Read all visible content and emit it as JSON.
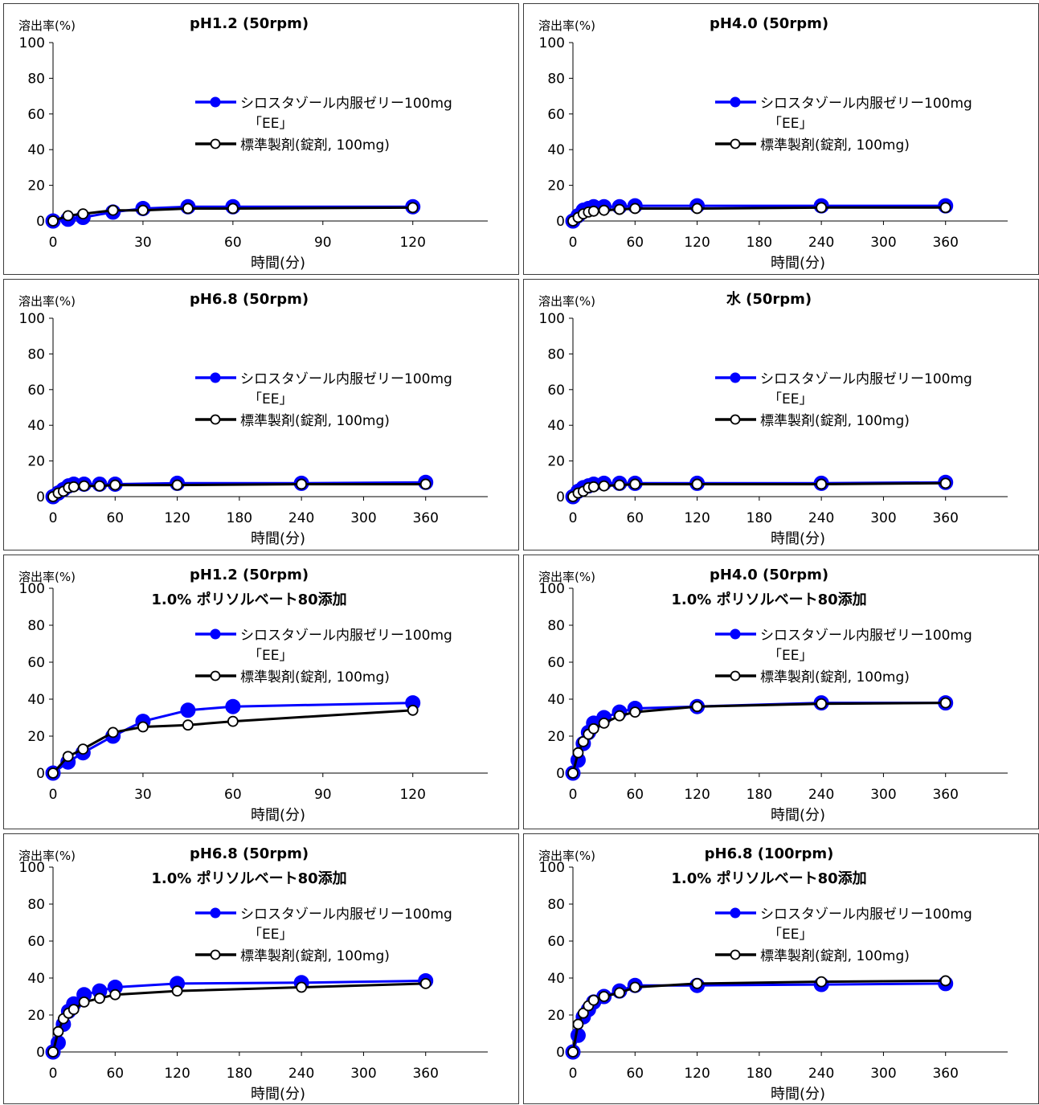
{
  "page": {
    "columns": 2,
    "rows": 4
  },
  "legend_labels": {
    "test": "シロスタゾール内服ゼリー100mg",
    "test_suffix": "「EE」",
    "reference": "標準製剤(錠剤, 100mg)"
  },
  "colors": {
    "test": "#0000ff",
    "reference": "#000000",
    "axis": "#000000"
  },
  "chart_data": [
    {
      "type": "line",
      "title": "pH1.2 (50rpm)",
      "subtitle": "",
      "ylabel": "溶出率(%)",
      "xlabel": "時間(分)",
      "xlim": [
        0,
        145
      ],
      "ylim": [
        0,
        100
      ],
      "xticks": [
        0,
        30,
        60,
        90,
        120
      ],
      "yticks": [
        0,
        20,
        40,
        60,
        80,
        100
      ],
      "legend": "upper-right",
      "series": [
        {
          "name": "シロスタゾール内服ゼリー100mg「EE」",
          "color": "#0000ff",
          "marker": "filled",
          "x": [
            0,
            5,
            10,
            20,
            30,
            45,
            60,
            120
          ],
          "y": [
            0,
            1,
            2,
            5,
            7,
            8,
            8,
            8
          ]
        },
        {
          "name": "標準製剤(錠剤, 100mg)",
          "color": "#000000",
          "marker": "open",
          "x": [
            0,
            5,
            10,
            20,
            30,
            45,
            60,
            120
          ],
          "y": [
            0,
            3,
            4,
            6,
            6,
            7,
            7,
            7.5
          ]
        }
      ]
    },
    {
      "type": "line",
      "title": "pH4.0 (50rpm)",
      "subtitle": "",
      "ylabel": "溶出率(%)",
      "xlabel": "時間(分)",
      "xlim": [
        0,
        420
      ],
      "ylim": [
        0,
        100
      ],
      "xticks": [
        0,
        60,
        120,
        180,
        240,
        300,
        360
      ],
      "yticks": [
        0,
        20,
        40,
        60,
        80,
        100
      ],
      "legend": "upper-right",
      "series": [
        {
          "name": "シロスタゾール内服ゼリー100mg「EE」",
          "color": "#0000ff",
          "marker": "filled",
          "x": [
            0,
            5,
            10,
            15,
            20,
            30,
            45,
            60,
            120,
            240,
            360
          ],
          "y": [
            0,
            3,
            6,
            7,
            8,
            8,
            8,
            8.5,
            8.5,
            8.5,
            8.5
          ]
        },
        {
          "name": "標準製剤(錠剤, 100mg)",
          "color": "#000000",
          "marker": "open",
          "x": [
            0,
            5,
            10,
            15,
            20,
            30,
            45,
            60,
            120,
            240,
            360
          ],
          "y": [
            0,
            2,
            4,
            5,
            5.5,
            6,
            6.5,
            7,
            7,
            7.5,
            7.5
          ]
        }
      ]
    },
    {
      "type": "line",
      "title": "pH6.8 (50rpm)",
      "subtitle": "",
      "ylabel": "溶出率(%)",
      "xlabel": "時間(分)",
      "xlim": [
        0,
        420
      ],
      "ylim": [
        0,
        100
      ],
      "xticks": [
        0,
        60,
        120,
        180,
        240,
        300,
        360
      ],
      "yticks": [
        0,
        20,
        40,
        60,
        80,
        100
      ],
      "legend": "upper-right",
      "series": [
        {
          "name": "シロスタゾール内服ゼリー100mg「EE」",
          "color": "#0000ff",
          "marker": "filled",
          "x": [
            0,
            5,
            10,
            15,
            20,
            30,
            45,
            60,
            120,
            240,
            360
          ],
          "y": [
            0,
            2,
            4,
            6,
            7,
            7,
            7,
            7,
            7.5,
            7.5,
            8
          ]
        },
        {
          "name": "標準製剤(錠剤, 100mg)",
          "color": "#000000",
          "marker": "open",
          "x": [
            0,
            5,
            10,
            15,
            20,
            30,
            45,
            60,
            120,
            240,
            360
          ],
          "y": [
            0,
            2,
            3,
            5,
            5.5,
            6,
            6,
            6.5,
            6.5,
            7,
            7
          ]
        }
      ]
    },
    {
      "type": "line",
      "title": "水 (50rpm)",
      "subtitle": "",
      "ylabel": "溶出率(%)",
      "xlabel": "時間(分)",
      "xlim": [
        0,
        420
      ],
      "ylim": [
        0,
        100
      ],
      "xticks": [
        0,
        60,
        120,
        180,
        240,
        300,
        360
      ],
      "yticks": [
        0,
        20,
        40,
        60,
        80,
        100
      ],
      "legend": "upper-right",
      "series": [
        {
          "name": "シロスタゾール内服ゼリー100mg「EE」",
          "color": "#0000ff",
          "marker": "filled",
          "x": [
            0,
            5,
            10,
            15,
            20,
            30,
            45,
            60,
            120,
            240,
            360
          ],
          "y": [
            0,
            3,
            5,
            6,
            7,
            7.5,
            7.5,
            7.5,
            7.5,
            7.5,
            8
          ]
        },
        {
          "name": "標準製剤(錠剤, 100mg)",
          "color": "#000000",
          "marker": "open",
          "x": [
            0,
            5,
            10,
            15,
            20,
            30,
            45,
            60,
            120,
            240,
            360
          ],
          "y": [
            0,
            2,
            3,
            5,
            5.5,
            6,
            6.5,
            7,
            7,
            7,
            7.5
          ]
        }
      ]
    },
    {
      "type": "line",
      "title": "pH1.2 (50rpm)",
      "subtitle": "1.0% ポリソルベート80添加",
      "ylabel": "溶出率(%)",
      "xlabel": "時間(分)",
      "xlim": [
        0,
        145
      ],
      "ylim": [
        0,
        100
      ],
      "xticks": [
        0,
        30,
        60,
        90,
        120
      ],
      "yticks": [
        0,
        20,
        40,
        60,
        80,
        100
      ],
      "legend": "upper-right",
      "series": [
        {
          "name": "シロスタゾール内服ゼリー100mg「EE」",
          "color": "#0000ff",
          "marker": "filled",
          "x": [
            0,
            5,
            10,
            20,
            30,
            45,
            60,
            120
          ],
          "y": [
            0,
            6,
            11,
            20,
            28,
            34,
            36,
            38
          ]
        },
        {
          "name": "標準製剤(錠剤, 100mg)",
          "color": "#000000",
          "marker": "open",
          "x": [
            0,
            5,
            10,
            20,
            30,
            45,
            60,
            120
          ],
          "y": [
            0,
            9,
            13,
            22,
            25,
            26,
            28,
            34
          ]
        }
      ]
    },
    {
      "type": "line",
      "title": "pH4.0 (50rpm)",
      "subtitle": "1.0% ポリソルベート80添加",
      "ylabel": "溶出率(%)",
      "xlabel": "時間(分)",
      "xlim": [
        0,
        420
      ],
      "ylim": [
        0,
        100
      ],
      "xticks": [
        0,
        60,
        120,
        180,
        240,
        300,
        360
      ],
      "yticks": [
        0,
        20,
        40,
        60,
        80,
        100
      ],
      "legend": "upper-right",
      "series": [
        {
          "name": "シロスタゾール内服ゼリー100mg「EE」",
          "color": "#0000ff",
          "marker": "filled",
          "x": [
            0,
            5,
            10,
            15,
            20,
            30,
            45,
            60,
            120,
            240,
            360
          ],
          "y": [
            0,
            7,
            16,
            22,
            27,
            30,
            33,
            35,
            36,
            38,
            38
          ]
        },
        {
          "name": "標準製剤(錠剤, 100mg)",
          "color": "#000000",
          "marker": "open",
          "x": [
            0,
            5,
            10,
            15,
            20,
            30,
            45,
            60,
            120,
            240,
            360
          ],
          "y": [
            0,
            11,
            17,
            21,
            24,
            27,
            31,
            33,
            36,
            37.5,
            38
          ]
        }
      ]
    },
    {
      "type": "line",
      "title": "pH6.8 (50rpm)",
      "subtitle": "1.0% ポリソルベート80添加",
      "ylabel": "溶出率(%)",
      "xlabel": "時間(分)",
      "xlim": [
        0,
        420
      ],
      "ylim": [
        0,
        100
      ],
      "xticks": [
        0,
        60,
        120,
        180,
        240,
        300,
        360
      ],
      "yticks": [
        0,
        20,
        40,
        60,
        80,
        100
      ],
      "legend": "upper-right",
      "series": [
        {
          "name": "シロスタゾール内服ゼリー100mg「EE」",
          "color": "#0000ff",
          "marker": "filled",
          "x": [
            0,
            5,
            10,
            15,
            20,
            30,
            45,
            60,
            120,
            240,
            360
          ],
          "y": [
            0,
            5,
            15,
            22,
            26,
            31,
            33,
            35,
            37,
            37.5,
            38.5
          ]
        },
        {
          "name": "標準製剤(錠剤, 100mg)",
          "color": "#000000",
          "marker": "open",
          "x": [
            0,
            5,
            10,
            15,
            20,
            30,
            45,
            60,
            120,
            240,
            360
          ],
          "y": [
            0,
            11,
            18,
            21,
            23,
            27,
            29,
            31,
            33,
            35,
            37
          ]
        }
      ]
    },
    {
      "type": "line",
      "title": "pH6.8 (100rpm)",
      "subtitle": "1.0% ポリソルベート80添加",
      "ylabel": "溶出率(%)",
      "xlabel": "時間(分)",
      "xlim": [
        0,
        420
      ],
      "ylim": [
        0,
        100
      ],
      "xticks": [
        0,
        60,
        120,
        180,
        240,
        300,
        360
      ],
      "yticks": [
        0,
        20,
        40,
        60,
        80,
        100
      ],
      "legend": "upper-right",
      "series": [
        {
          "name": "シロスタゾール内服ゼリー100mg「EE」",
          "color": "#0000ff",
          "marker": "filled",
          "x": [
            0,
            5,
            10,
            15,
            20,
            30,
            45,
            60,
            120,
            240,
            360
          ],
          "y": [
            0,
            9,
            19,
            23,
            27,
            30,
            33,
            36,
            36,
            36.5,
            37
          ]
        },
        {
          "name": "標準製剤(錠剤, 100mg)",
          "color": "#000000",
          "marker": "open",
          "x": [
            0,
            5,
            10,
            15,
            20,
            30,
            45,
            60,
            120,
            240,
            360
          ],
          "y": [
            0,
            15,
            21,
            25,
            28,
            30,
            32,
            35,
            37,
            38,
            38.5
          ]
        }
      ]
    }
  ]
}
